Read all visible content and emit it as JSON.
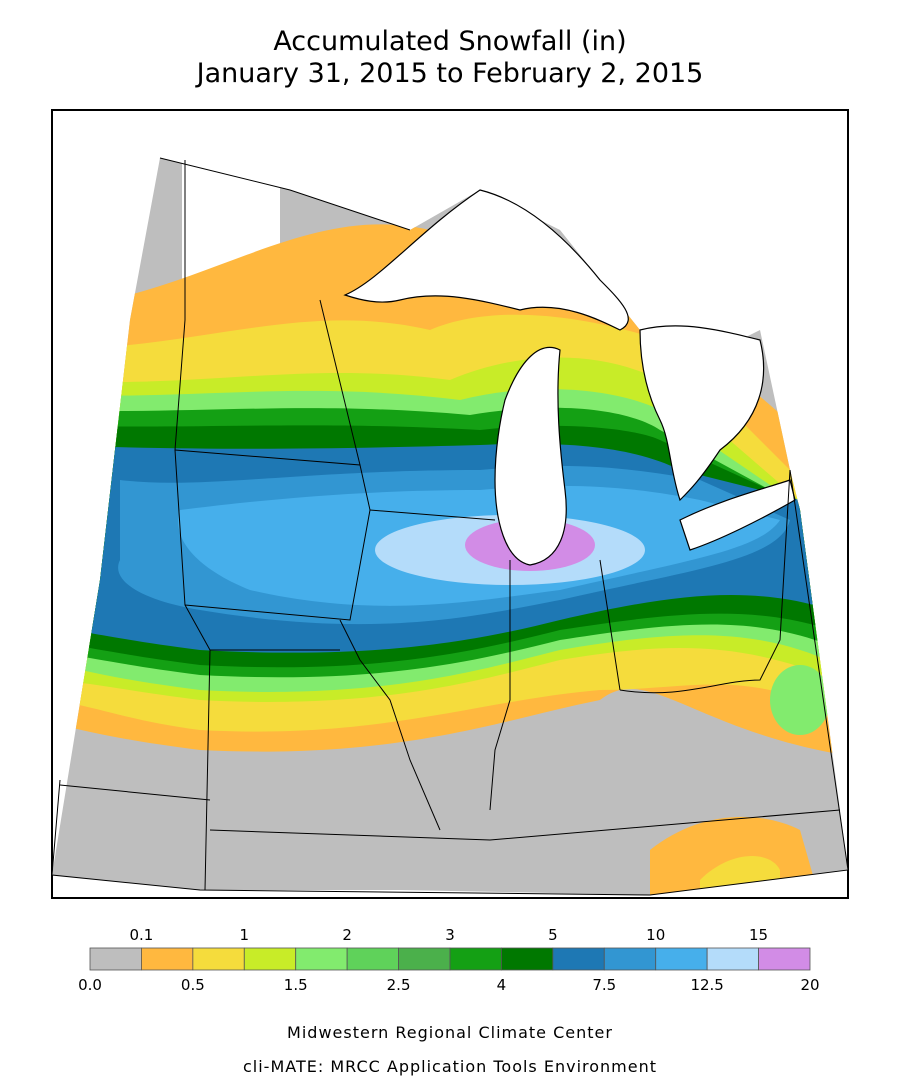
{
  "title_line1": "Accumulated Snowfall (in)",
  "title_line2": "January 31, 2015 to February 2, 2015",
  "legend": {
    "colors": [
      "#bebebe",
      "#ffb83f",
      "#f5dc3c",
      "#c8ec28",
      "#82eb6e",
      "#5fd25a",
      "#4bb04b",
      "#14a014",
      "#007800",
      "#1e78b4",
      "#3296d2",
      "#46afeb",
      "#b4dcfa",
      "#d28ce6"
    ],
    "upper_labels": [
      0.1,
      1,
      2,
      3,
      5,
      10,
      15
    ],
    "lower_labels": [
      {
        "value": 0,
        "label": "0.0"
      },
      0.5,
      1.5,
      2.5,
      4,
      7.5,
      12.5,
      20
    ]
  },
  "footer_line1": "Midwestern Regional Climate Center",
  "footer_line2": "cli-MATE: MRCC Application Tools Environment"
}
